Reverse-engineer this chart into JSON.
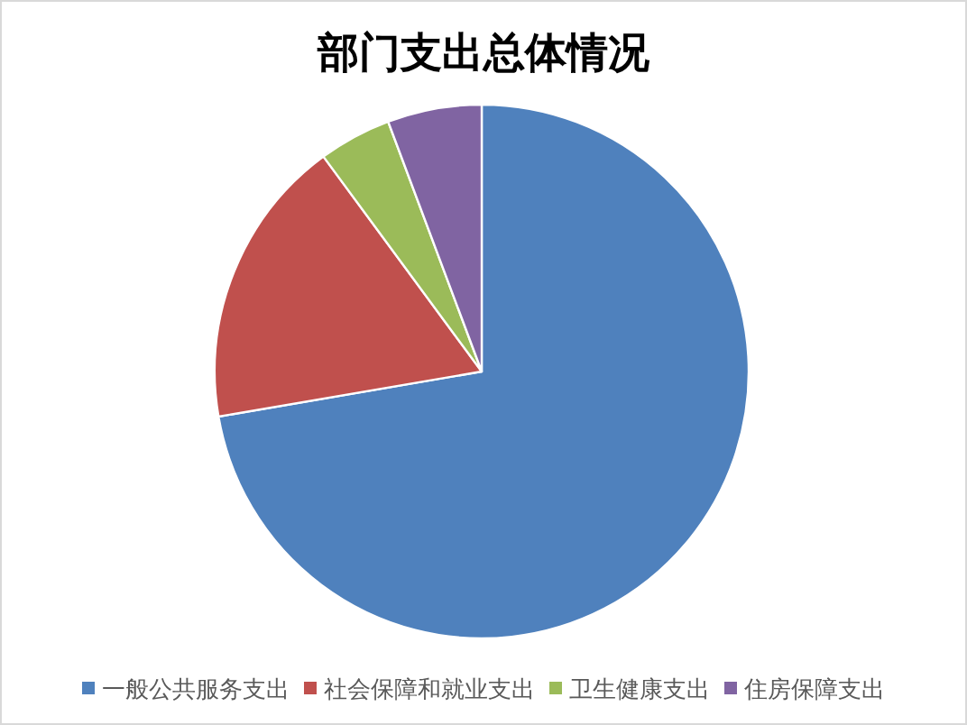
{
  "chart_data": {
    "type": "pie",
    "title": "部门支出总体情况",
    "categories": [
      "一般公共服务支出",
      "社会保障和就业支出",
      "卫生健康支出",
      "住房保障支出"
    ],
    "values": [
      72.3,
      17.6,
      4.4,
      5.7
    ],
    "colors": [
      "#4f81bd",
      "#c0504d",
      "#9bbb59",
      "#8064a2"
    ],
    "legend": "bottom"
  }
}
